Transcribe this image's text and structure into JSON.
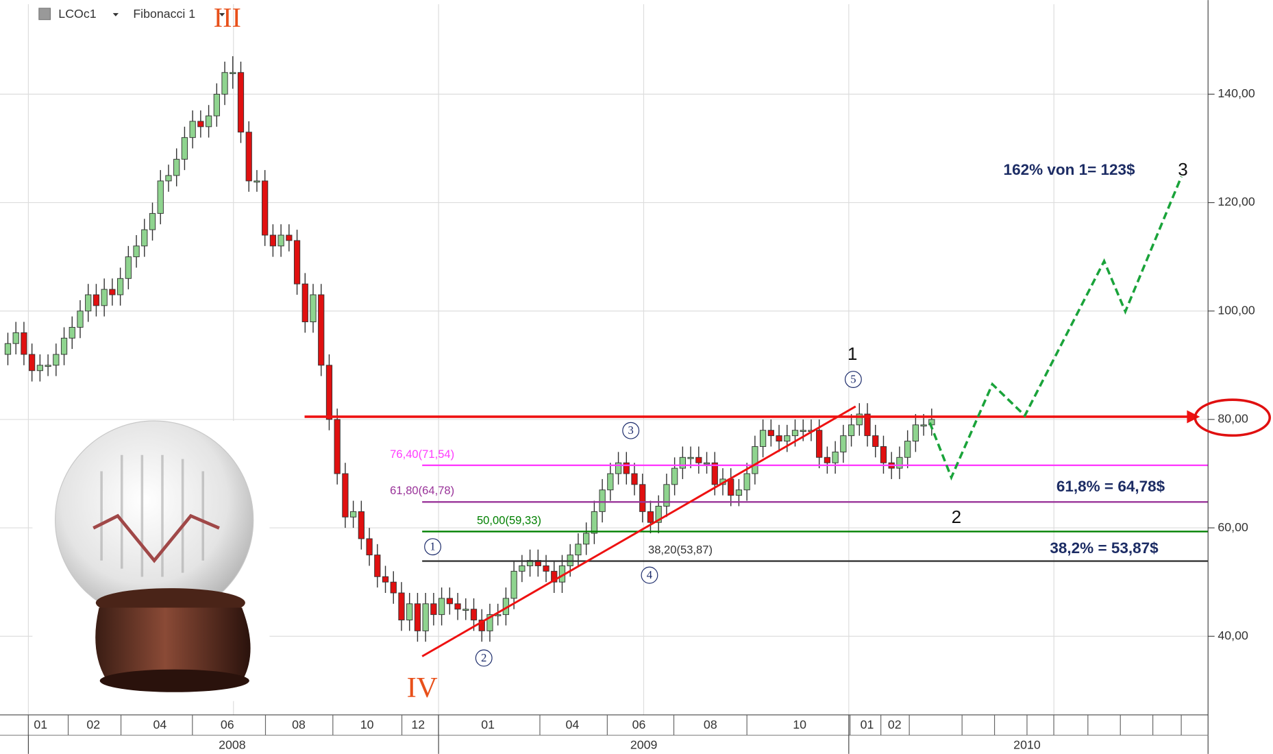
{
  "chart_data": {
    "type": "candlestick",
    "toolbar": {
      "symbol": "LCOc1",
      "study": "Fibonacci 1"
    },
    "xlim": [
      -0.83,
      34.51
    ],
    "ylim": [
      25.5,
      156.6
    ],
    "yticks": [
      {
        "value": 40,
        "label": "40,00"
      },
      {
        "value": 60,
        "label": "60,00"
      },
      {
        "value": 80,
        "label": "80,00"
      },
      {
        "value": 100,
        "label": "100,00"
      },
      {
        "value": 120,
        "label": "120,00"
      },
      {
        "value": 140,
        "label": "140,00"
      }
    ],
    "xgrid": [
      0,
      6,
      12,
      18,
      24,
      30
    ],
    "grid": true,
    "month_labels": [
      "01",
      "02",
      "04",
      "06",
      "08",
      "10",
      "12",
      "01",
      "04",
      "06",
      "08",
      "10",
      "01",
      "02"
    ],
    "year_labels": [
      "2008",
      "2009",
      "2010"
    ],
    "up_color": "#8fd48f",
    "down_color": "#e01010",
    "x": [
      -0.6,
      -0.365,
      -0.13,
      0.105,
      0.34,
      0.575,
      0.81,
      1.045,
      1.28,
      1.515,
      1.75,
      1.985,
      2.22,
      2.455,
      2.69,
      2.925,
      3.16,
      3.395,
      3.63,
      3.865,
      4.1,
      4.335,
      4.57,
      4.805,
      5.04,
      5.275,
      5.51,
      5.745,
      5.98,
      6.215,
      6.45,
      6.685,
      6.92,
      7.155,
      7.39,
      7.625,
      7.86,
      8.095,
      8.33,
      8.565,
      8.8,
      9.035,
      9.27,
      9.505,
      9.74,
      9.975,
      10.21,
      10.445,
      10.68,
      10.915,
      11.15,
      11.385,
      11.62,
      11.855,
      12.09,
      12.325,
      12.56,
      12.795,
      13.03,
      13.265,
      13.5,
      13.735,
      13.97,
      14.205,
      14.44,
      14.675,
      14.91,
      15.145,
      15.38,
      15.615,
      15.85,
      16.085,
      16.32,
      16.555,
      16.79,
      17.025,
      17.26,
      17.495,
      17.73,
      17.965,
      18.2,
      18.435,
      18.67,
      18.905,
      19.14,
      19.375,
      19.61,
      19.845,
      20.08,
      20.315,
      20.55,
      20.785,
      21.02,
      21.255,
      21.49,
      21.725,
      21.96,
      22.195,
      22.43,
      22.665,
      22.9,
      23.135,
      23.37,
      23.605,
      23.84,
      24.075,
      24.31,
      24.545,
      24.78,
      25.015,
      25.25,
      25.485,
      25.72,
      25.955,
      26.19,
      26.425
    ],
    "open": [
      92,
      94,
      96,
      92,
      89,
      90,
      90,
      92,
      95,
      97,
      100,
      103,
      101,
      104,
      103,
      106,
      110,
      112,
      115,
      118,
      124,
      125,
      128,
      132,
      135,
      134,
      136,
      140,
      144,
      144,
      133,
      124,
      124,
      114,
      112,
      114,
      113,
      105,
      98,
      103,
      90,
      80,
      70,
      62,
      63,
      58,
      55,
      51,
      50,
      48,
      43,
      46,
      41,
      46,
      44,
      47,
      46,
      45,
      45,
      43,
      41,
      44,
      44,
      47,
      52,
      53,
      54,
      53,
      52,
      50,
      53,
      55,
      57,
      59,
      63,
      67,
      70,
      72,
      70,
      68,
      63,
      61,
      64,
      68,
      71,
      73,
      73,
      72,
      72,
      68,
      69,
      66,
      67,
      70,
      75,
      78,
      77,
      76,
      77,
      78,
      78,
      78,
      73,
      72,
      74,
      77,
      79,
      81,
      77,
      75,
      72,
      71,
      73,
      76,
      79,
      79
    ],
    "high": [
      96,
      98,
      98,
      94,
      92,
      92,
      94,
      97,
      99,
      102,
      105,
      105,
      106,
      106,
      108,
      112,
      114,
      117,
      120,
      126,
      127,
      130,
      134,
      137,
      137,
      138,
      142,
      146,
      147,
      146,
      135,
      126,
      126,
      116,
      116,
      116,
      115,
      107,
      105,
      105,
      92,
      82,
      72,
      65,
      65,
      60,
      57,
      53,
      52,
      50,
      48,
      48,
      48,
      48,
      49,
      49,
      48,
      47,
      47,
      45,
      46,
      46,
      49,
      54,
      55,
      56,
      56,
      55,
      54,
      55,
      57,
      59,
      61,
      65,
      69,
      72,
      74,
      74,
      72,
      70,
      65,
      66,
      70,
      73,
      75,
      75,
      75,
      74,
      74,
      71,
      71,
      69,
      72,
      77,
      80,
      80,
      79,
      79,
      80,
      80,
      80,
      80,
      75,
      76,
      79,
      81,
      83,
      83,
      79,
      77,
      74,
      75,
      78,
      81,
      81,
      82
    ],
    "low": [
      90,
      92,
      90,
      87,
      87,
      88,
      88,
      90,
      93,
      95,
      98,
      99,
      99,
      101,
      101,
      104,
      108,
      110,
      113,
      116,
      122,
      123,
      126,
      130,
      132,
      132,
      134,
      138,
      141,
      131,
      122,
      122,
      112,
      110,
      110,
      111,
      103,
      96,
      96,
      88,
      78,
      68,
      60,
      60,
      56,
      53,
      49,
      48,
      46,
      41,
      41,
      39,
      39,
      42,
      42,
      44,
      43,
      43,
      41,
      39,
      39,
      42,
      42,
      45,
      50,
      51,
      51,
      50,
      48,
      48,
      51,
      53,
      55,
      57,
      61,
      65,
      68,
      68,
      66,
      61,
      59,
      59,
      62,
      66,
      69,
      71,
      70,
      70,
      66,
      66,
      64,
      64,
      65,
      68,
      73,
      75,
      74,
      74,
      75,
      76,
      76,
      71,
      70,
      70,
      72,
      75,
      77,
      75,
      73,
      70,
      69,
      69,
      71,
      74,
      77,
      77
    ],
    "close": [
      94,
      96,
      92,
      89,
      90,
      90,
      92,
      95,
      97,
      100,
      103,
      101,
      104,
      103,
      106,
      110,
      112,
      115,
      118,
      124,
      125,
      128,
      132,
      135,
      134,
      136,
      140,
      144,
      144,
      133,
      124,
      124,
      114,
      112,
      114,
      113,
      105,
      98,
      103,
      90,
      80,
      70,
      62,
      63,
      58,
      55,
      51,
      50,
      48,
      43,
      46,
      41,
      46,
      44,
      47,
      46,
      45,
      45,
      43,
      41,
      44,
      44,
      47,
      52,
      53,
      54,
      53,
      52,
      50,
      53,
      55,
      57,
      59,
      63,
      67,
      70,
      72,
      70,
      68,
      63,
      61,
      64,
      68,
      71,
      73,
      73,
      72,
      72,
      68,
      69,
      66,
      67,
      70,
      75,
      78,
      77,
      76,
      77,
      78,
      78,
      78,
      73,
      72,
      74,
      77,
      79,
      81,
      77,
      75,
      72,
      71,
      73,
      76,
      79,
      79,
      80
    ],
    "fibonacci": {
      "start_x": 11.52,
      "levels": [
        {
          "label": "76,40(71,54)",
          "value": 71.54,
          "color": "#ff3cff"
        },
        {
          "label": "61,80(64,78)",
          "value": 64.78,
          "color": "#993399"
        },
        {
          "label": "50,00(59,33)",
          "value": 59.33,
          "color": "#008000"
        },
        {
          "label": "38,20(53,87)",
          "value": 53.87,
          "color": "#333333"
        }
      ]
    },
    "resistance": {
      "value": 80.5,
      "start_x": 8.08,
      "color": "#ee1111"
    },
    "trendline": {
      "x": [
        11.52,
        24.2
      ],
      "values": [
        36.3,
        82.4
      ],
      "color": "#ee1111"
    },
    "projection": {
      "x": [
        26.37,
        27.0,
        28.2,
        29.15,
        31.47,
        32.09,
        33.73
      ],
      "values": [
        79.4,
        69.3,
        86.5,
        80.7,
        109.2,
        99.9,
        124.8
      ],
      "color": "#1aa33a"
    },
    "waves": [
      "1",
      "2",
      "3",
      "4",
      "5"
    ],
    "wave_labels": [
      "III",
      "IV",
      "1",
      "2",
      "3"
    ],
    "annotations": [
      "162% von 1= 123$",
      "61,8% = 64,78$",
      "38,2% = 53,87$"
    ]
  }
}
